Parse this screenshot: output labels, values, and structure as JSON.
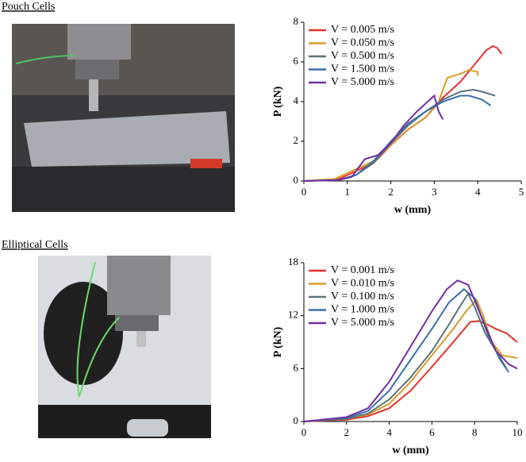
{
  "panels": [
    {
      "label": "Pouch Cells"
    },
    {
      "label": "Elliptical Cells"
    }
  ],
  "chart_data": [
    {
      "type": "line",
      "xlabel": "w (mm)",
      "ylabel": "P (kN)",
      "xlim": [
        0,
        5
      ],
      "xticks": [
        0,
        1,
        2,
        3,
        4,
        5
      ],
      "ylim": [
        0,
        8
      ],
      "yticks": [
        0,
        2,
        4,
        6,
        8
      ],
      "series": [
        {
          "name": "V = 0.005 m/s",
          "color": "#e8312a",
          "x": [
            0,
            0.5,
            0.8,
            1.0,
            1.3,
            1.6,
            2.0,
            2.4,
            2.8,
            3.2,
            3.6,
            3.9,
            4.2,
            4.35,
            4.45,
            4.55
          ],
          "values": [
            0,
            0.05,
            0.1,
            0.3,
            0.6,
            0.9,
            1.8,
            2.6,
            3.2,
            4.2,
            5.0,
            5.8,
            6.6,
            6.8,
            6.7,
            6.4
          ]
        },
        {
          "name": "V = 0.050 m/s",
          "color": "#d89b2a",
          "x": [
            0,
            0.7,
            0.9,
            1.2,
            1.6,
            2.0,
            2.4,
            2.8,
            3.1,
            3.3,
            3.6,
            3.8,
            4.0,
            4.0
          ],
          "values": [
            0,
            0.1,
            0.3,
            0.6,
            1.0,
            1.8,
            2.6,
            3.2,
            4.0,
            5.2,
            5.4,
            5.6,
            5.5,
            5.3
          ]
        },
        {
          "name": "V = 0.500 m/s",
          "color": "#5a7379",
          "x": [
            0,
            0.8,
            1.2,
            1.6,
            2.0,
            2.4,
            2.8,
            3.2,
            3.6,
            3.9,
            4.1,
            4.4
          ],
          "values": [
            0,
            0.05,
            0.3,
            0.9,
            1.9,
            2.8,
            3.5,
            4.1,
            4.5,
            4.6,
            4.5,
            4.3
          ]
        },
        {
          "name": "V = 1.500 m/s",
          "color": "#3a6ea8",
          "x": [
            0,
            0.8,
            1.2,
            1.6,
            2.0,
            2.4,
            2.8,
            3.2,
            3.6,
            3.8,
            4.1,
            4.3
          ],
          "values": [
            0,
            0.05,
            0.3,
            1.0,
            2.0,
            2.9,
            3.5,
            4.0,
            4.3,
            4.3,
            4.1,
            3.8
          ]
        },
        {
          "name": "V = 5.000 m/s",
          "color": "#7030a0",
          "x": [
            0,
            0.8,
            1.1,
            1.4,
            1.7,
            2.0,
            2.3,
            2.6,
            2.9,
            3.0,
            3.1,
            3.2
          ],
          "values": [
            0,
            0.05,
            0.2,
            1.1,
            1.3,
            1.9,
            2.8,
            3.5,
            4.1,
            4.3,
            3.5,
            3.1
          ]
        }
      ]
    },
    {
      "type": "line",
      "xlabel": "w (mm)",
      "ylabel": "P (kN)",
      "xlim": [
        0,
        10
      ],
      "xticks": [
        0,
        2,
        4,
        6,
        8,
        10
      ],
      "ylim": [
        0,
        18
      ],
      "yticks": [
        0,
        6,
        12,
        18
      ],
      "series": [
        {
          "name": "V = 0.001 m/s",
          "color": "#e8312a",
          "x": [
            0,
            2,
            3,
            4,
            5,
            6,
            7,
            7.8,
            8.2,
            8.6,
            9,
            9.5,
            10
          ],
          "values": [
            0,
            0.2,
            0.6,
            1.5,
            3.5,
            6.2,
            9,
            11.3,
            11.4,
            11,
            10.5,
            10,
            9
          ]
        },
        {
          "name": "V = 0.010 m/s",
          "color": "#d89b2a",
          "x": [
            0,
            2,
            3,
            4,
            5,
            6,
            7,
            7.6,
            8.1,
            8.4,
            8.8,
            9.3,
            10
          ],
          "values": [
            0,
            0.3,
            0.8,
            2,
            4.5,
            7.5,
            10.5,
            12.5,
            13.8,
            12,
            9,
            7.5,
            7.2
          ]
        },
        {
          "name": "V = 0.100 m/s",
          "color": "#5a7379",
          "x": [
            0,
            2,
            3,
            4,
            5,
            6,
            6.8,
            7.3,
            7.7,
            8,
            8.5,
            9,
            9.5
          ],
          "values": [
            0,
            0.3,
            0.9,
            2.5,
            5,
            8,
            11,
            13,
            14.5,
            13,
            10,
            8,
            6
          ]
        },
        {
          "name": "V = 1.000 m/s",
          "color": "#3a6ea8",
          "x": [
            0,
            2,
            3,
            4,
            5,
            6,
            6.8,
            7.5,
            8,
            8.6,
            9.2,
            9.6
          ],
          "values": [
            0,
            0.4,
            1.2,
            3.5,
            7,
            10.5,
            13.5,
            15,
            14,
            10,
            7,
            5.6
          ]
        },
        {
          "name": "V = 5.000 m/s",
          "color": "#7030a0",
          "x": [
            0,
            2,
            3,
            4,
            5,
            6,
            6.7,
            7.2,
            7.7,
            8.3,
            9,
            9.6,
            10
          ],
          "values": [
            0,
            0.5,
            1.5,
            4.5,
            8.5,
            12.5,
            15,
            16,
            15.5,
            12,
            8,
            6.5,
            6
          ]
        }
      ]
    }
  ]
}
